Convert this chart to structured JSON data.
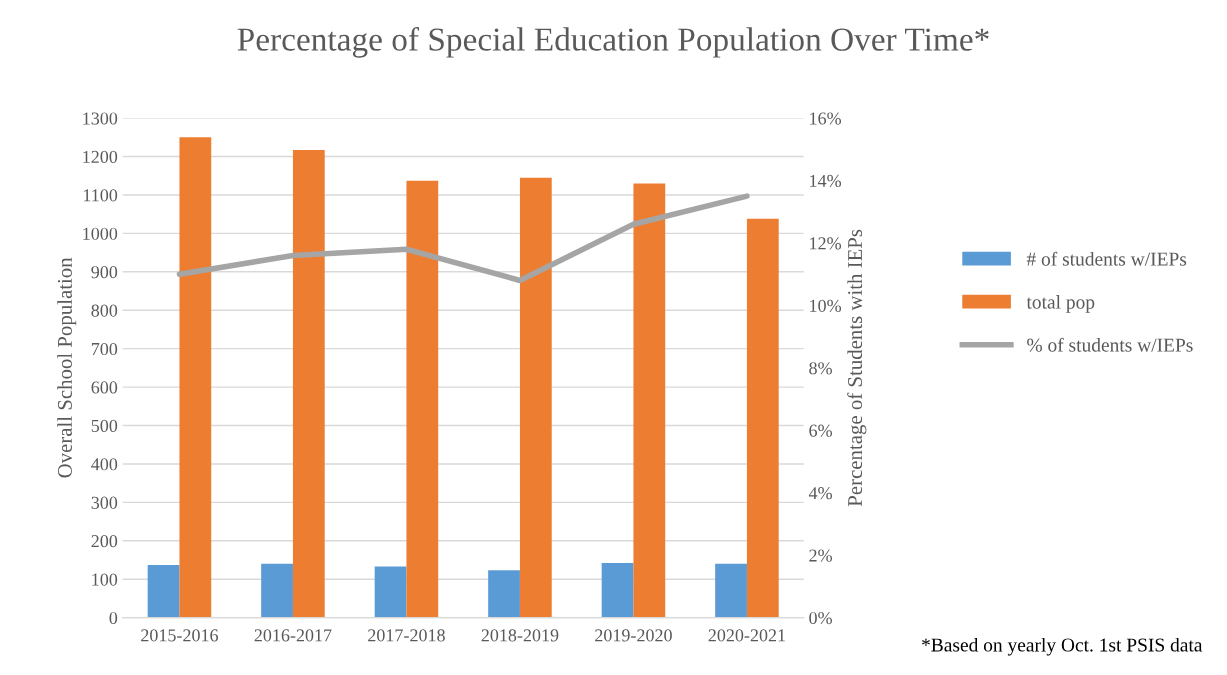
{
  "chart_data": {
    "type": "bar",
    "title": "Percentage of Special Education Population Over Time*",
    "categories": [
      "2015-2016",
      "2016-2017",
      "2017-2018",
      "2018-2019",
      "2019-2020",
      "2020-2021"
    ],
    "series": [
      {
        "name": "# of students w/IEPs",
        "color": "#5b9bd5",
        "values": [
          137,
          140,
          133,
          123,
          142,
          140
        ]
      },
      {
        "name": "total pop",
        "color": "#ed7d31",
        "values": [
          1250,
          1217,
          1137,
          1145,
          1130,
          1038
        ]
      },
      {
        "name": "% of students w/IEPs",
        "color": "#a5a5a5",
        "type": "line",
        "axis": "y2",
        "values": [
          11.0,
          11.6,
          11.8,
          10.8,
          12.6,
          13.5
        ]
      }
    ],
    "ylabel": "Overall School Population",
    "y2label": "Percentage of Students with IEPs",
    "ylim": [
      0,
      1300
    ],
    "yticks": [
      0,
      100,
      200,
      300,
      400,
      500,
      600,
      700,
      800,
      900,
      1000,
      1100,
      1200,
      1300
    ],
    "y2lim": [
      0,
      16
    ],
    "y2ticks": [
      {
        "value": 0,
        "label": "0%"
      },
      {
        "value": 2,
        "label": "2%"
      },
      {
        "value": 4,
        "label": "4%"
      },
      {
        "value": 6,
        "label": "6%"
      },
      {
        "value": 8,
        "label": "8%"
      },
      {
        "value": 10,
        "label": "10%"
      },
      {
        "value": 12,
        "label": "12%"
      },
      {
        "value": 14,
        "label": "14%"
      },
      {
        "value": 16,
        "label": "16%"
      }
    ],
    "grid": "y",
    "legend": "right",
    "annotations": [
      "*Based on yearly Oct. 1st PSIS data"
    ]
  }
}
